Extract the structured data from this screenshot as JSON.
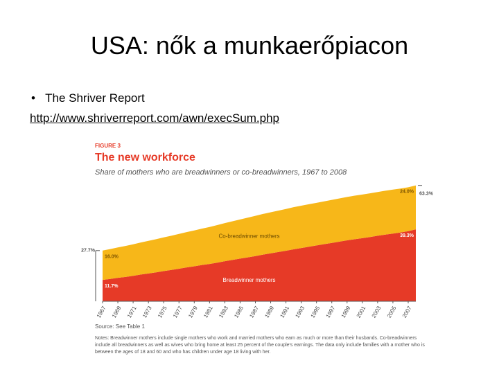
{
  "slide": {
    "title": "USA: nők a munkaerőpiacon",
    "bullet": "The Shriver Report",
    "link": "http://www.shriverreport.com/awn/execSum.php"
  },
  "chart_data": {
    "type": "area",
    "stacked": true,
    "figure_label": "FIGURE 3",
    "title": "The new workforce",
    "subtitle": "Share of mothers who are breadwinners or co-breadwinners, 1967 to 2008",
    "x": [
      1967,
      1968,
      1969,
      1970,
      1971,
      1972,
      1973,
      1974,
      1975,
      1976,
      1977,
      1978,
      1979,
      1980,
      1981,
      1982,
      1983,
      1984,
      1985,
      1986,
      1987,
      1988,
      1989,
      1990,
      1991,
      1992,
      1993,
      1994,
      1995,
      1996,
      1997,
      1998,
      1999,
      2000,
      2001,
      2002,
      2003,
      2004,
      2005,
      2006,
      2007,
      2008
    ],
    "xlim": [
      1967,
      2008
    ],
    "xticks": [
      1967,
      1969,
      1971,
      1973,
      1975,
      1977,
      1979,
      1981,
      1983,
      1985,
      1987,
      1989,
      1991,
      1993,
      1995,
      1997,
      1999,
      2001,
      2003,
      2005,
      2007
    ],
    "ylim": [
      0,
      70
    ],
    "series": [
      {
        "name": "Breadwinner mothers",
        "color": "#e63a27",
        "values": [
          11.7,
          12.2,
          12.8,
          13.3,
          13.9,
          14.6,
          15.2,
          15.8,
          16.5,
          17.1,
          17.8,
          18.5,
          19.1,
          19.8,
          20.4,
          21.1,
          21.9,
          22.6,
          23.3,
          24.0,
          24.7,
          25.5,
          26.2,
          26.9,
          27.6,
          28.4,
          29.1,
          29.8,
          30.5,
          31.2,
          31.9,
          32.6,
          33.3,
          33.9,
          34.5,
          35.1,
          35.8,
          36.4,
          37.0,
          37.6,
          38.3,
          39.3
        ],
        "value_labels": [
          "11.7%",
          null,
          null,
          null,
          null,
          null,
          null,
          null,
          null,
          null,
          null,
          null,
          null,
          null,
          null,
          null,
          null,
          null,
          null,
          null,
          null,
          null,
          null,
          null,
          null,
          null,
          null,
          null,
          null,
          null,
          null,
          null,
          null,
          null,
          null,
          null,
          null,
          null,
          null,
          null,
          null,
          "39.3%"
        ]
      },
      {
        "name": "Co-breadwinner mothers",
        "color": "#f7b719",
        "values": [
          16.0,
          16.3,
          16.6,
          16.9,
          17.2,
          17.5,
          17.8,
          18.1,
          18.4,
          18.7,
          19.0,
          19.3,
          19.6,
          19.9,
          20.2,
          20.5,
          20.8,
          21.1,
          21.4,
          21.7,
          22.0,
          22.2,
          22.4,
          22.6,
          22.8,
          23.0,
          23.1,
          23.2,
          23.3,
          23.4,
          23.5,
          23.6,
          23.7,
          23.8,
          23.8,
          23.9,
          23.9,
          24.0,
          24.0,
          24.0,
          24.0,
          24.0
        ],
        "value_labels": [
          "16.0%",
          null,
          null,
          null,
          null,
          null,
          null,
          null,
          null,
          null,
          null,
          null,
          null,
          null,
          null,
          null,
          null,
          null,
          null,
          null,
          null,
          null,
          null,
          null,
          null,
          null,
          null,
          null,
          null,
          null,
          null,
          null,
          null,
          null,
          null,
          null,
          null,
          null,
          null,
          null,
          null,
          "24.0%"
        ]
      }
    ],
    "totals": {
      "values": [
        27.7,
        63.3
      ],
      "value_labels": [
        "27.7%",
        "63.3%"
      ]
    },
    "source": "Source: See Table 1",
    "notes": "Notes: Breadwinner mothers include single mothers who work and married mothers who earn as much or more than their husbands. Co-breadwinners include all breadwinners as well as wives who bring home at least 25 percent of the couple's earnings. The data only include families with a mother who is between the ages of 18 and 60 and who has children under age 18 living with her."
  }
}
